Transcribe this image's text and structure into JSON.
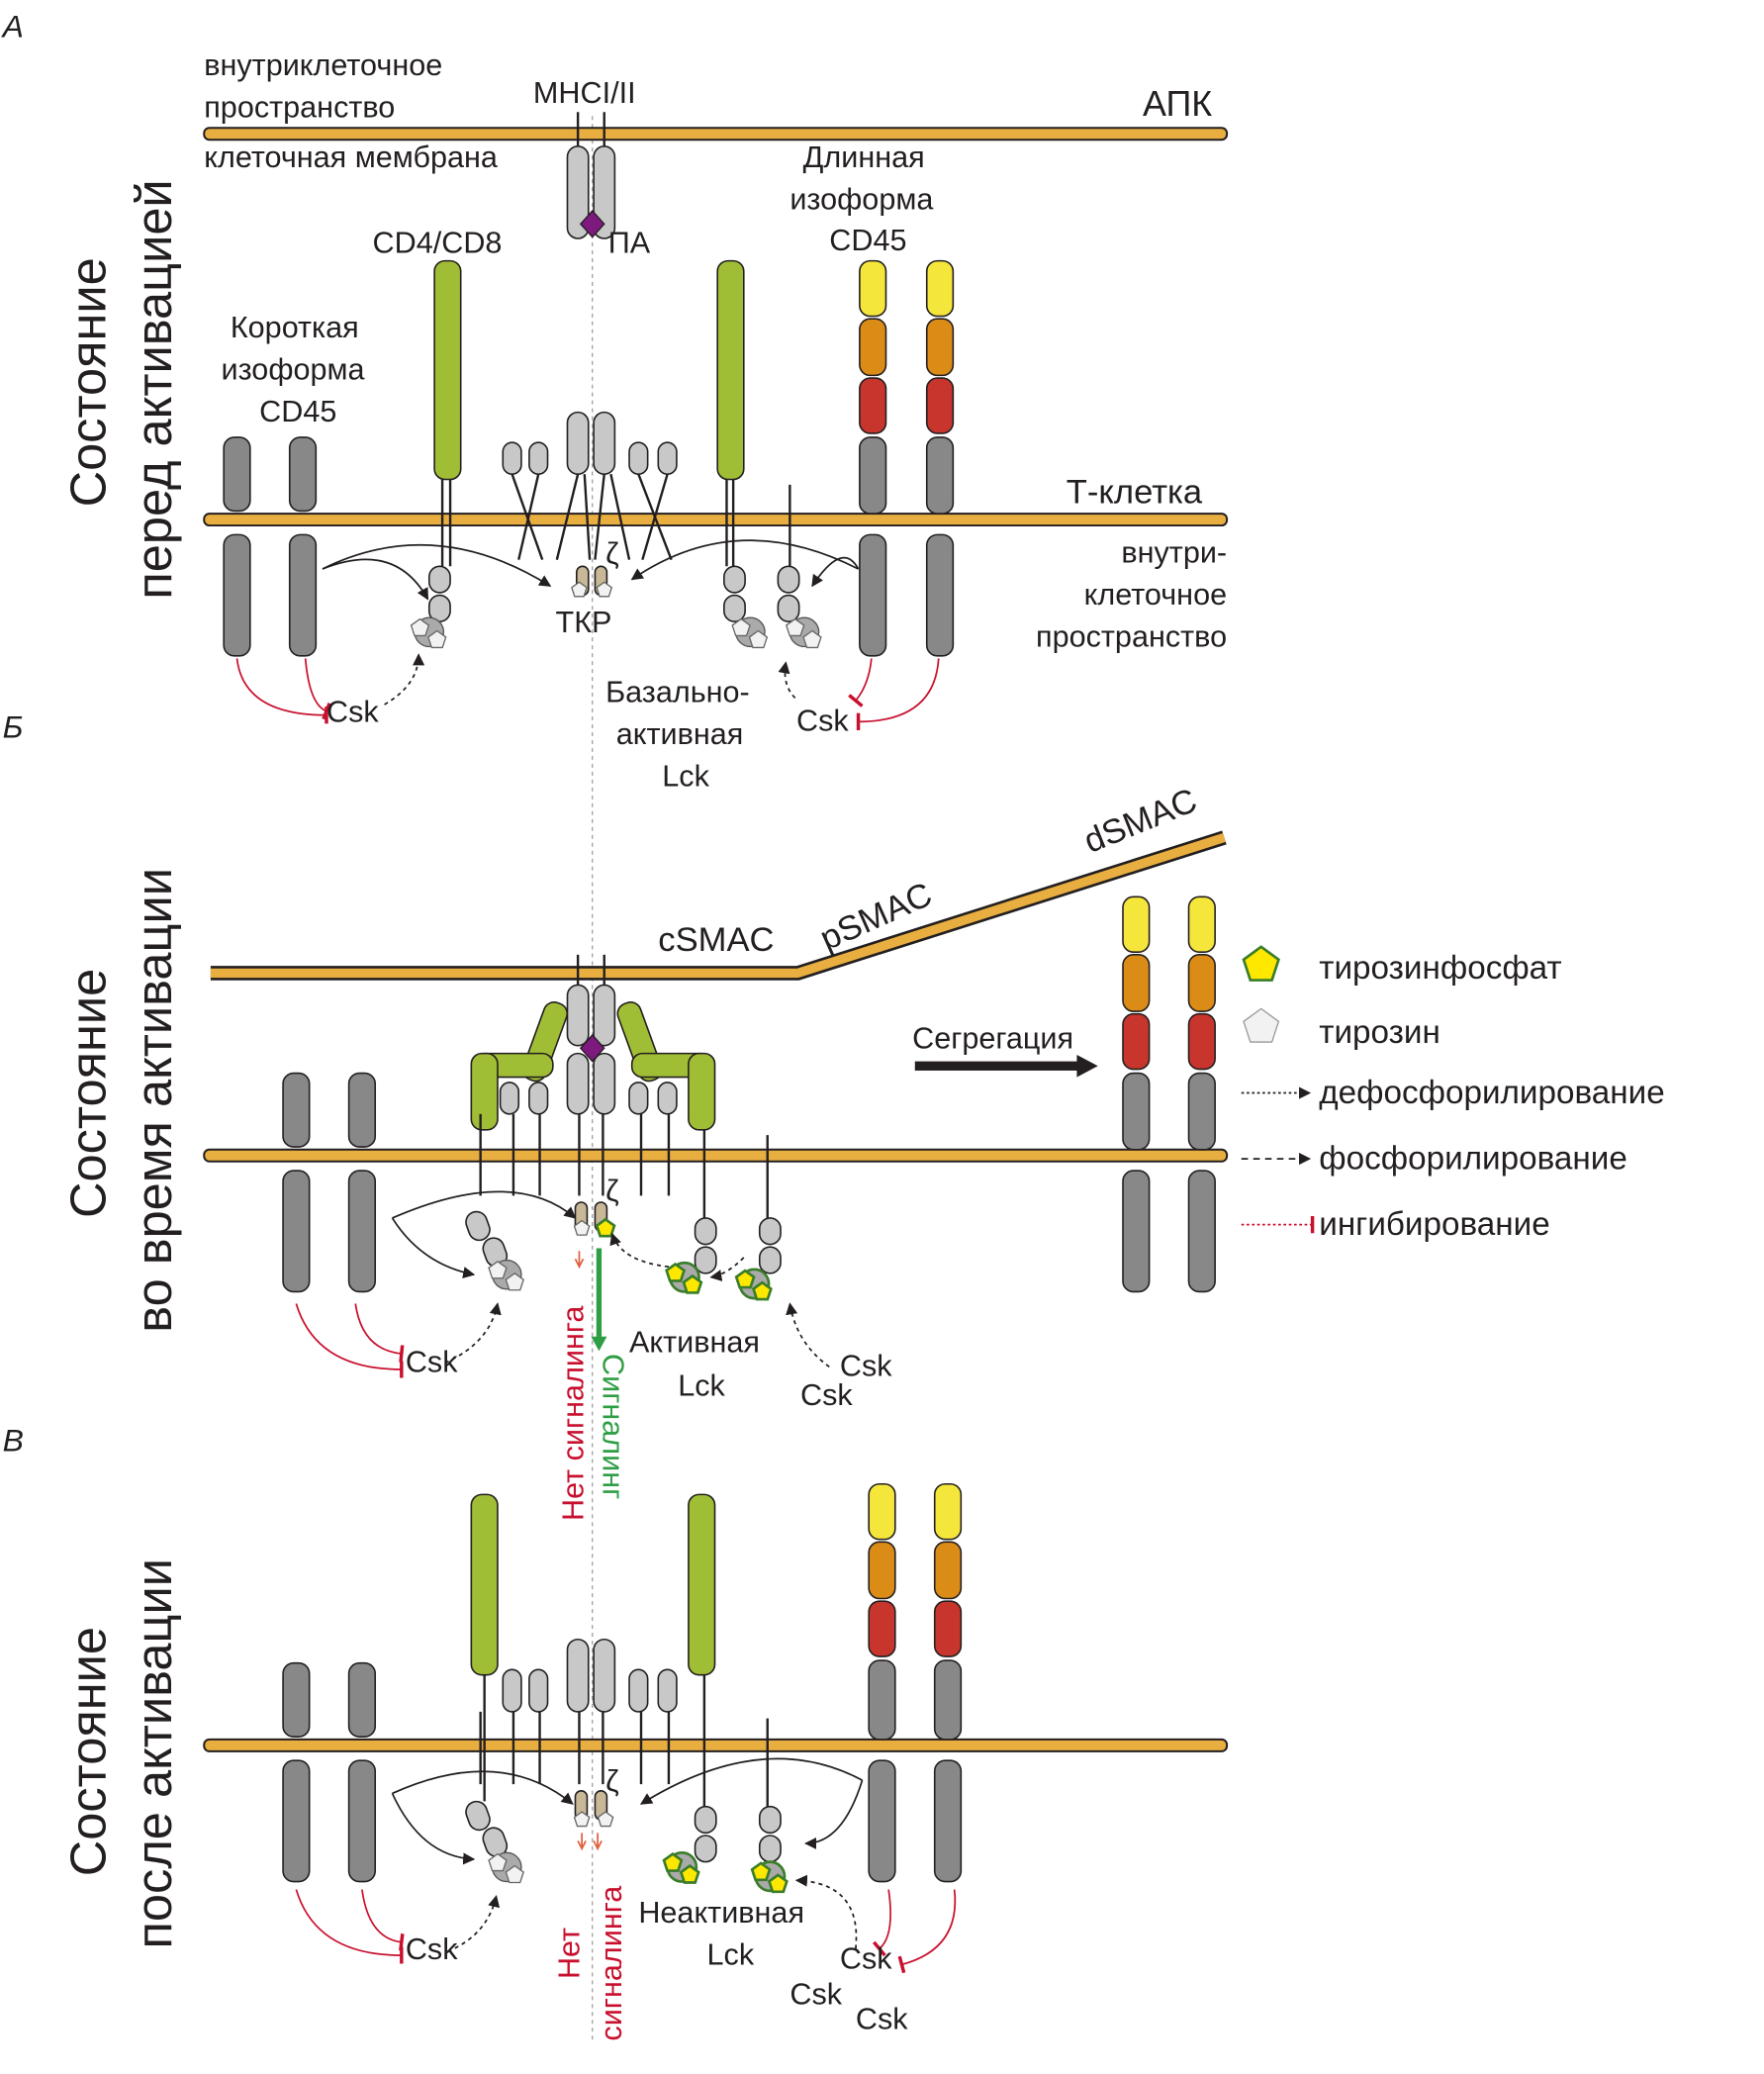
{
  "panels": {
    "a": {
      "letter": "А",
      "side_title_1": "Состояние",
      "side_title_2": "перед активацией",
      "apc_intracellular_1": "внутриклеточное",
      "apc_intracellular_2": "пространство",
      "mhc": "МНСI/II",
      "apc": "АПК",
      "cell_membrane": "клеточная мембрана",
      "antigen": "ПА",
      "cd4cd8": "CD4/CD8",
      "long_cd45_1": "Длинная",
      "long_cd45_2": "изоформа",
      "long_cd45_3": "CD45",
      "short_cd45_1": "Короткая",
      "short_cd45_2": "изоформа",
      "short_cd45_3": "CD45",
      "t_cell": "Т-клетка",
      "t_intracellular_1": "внутри-",
      "t_intracellular_2": "клеточное",
      "t_intracellular_3": "пространство",
      "zeta": "ζ",
      "tcr": "ТКР",
      "csk_left": "Csk",
      "csk_right": "Csk",
      "lck_1": "Базально-",
      "lck_2": "активная",
      "lck_3": "Lck"
    },
    "b": {
      "letter": "Б",
      "side_title_1": "Состояние",
      "side_title_2": "во время активации",
      "csmac": "cSMAC",
      "psmac": "pSMAC",
      "dsmac": "dSMAC",
      "segregation": "Сегрегация",
      "zeta": "ζ",
      "no_signaling": "Нет сигналинга",
      "signaling": "Сигналинг",
      "lck_1": "Активная",
      "lck_2": "Lck",
      "csk_left": "Csk",
      "csk_right_1": "Csk",
      "csk_right_2": "Csk"
    },
    "c": {
      "letter": "В",
      "side_title_1": "Состояние",
      "side_title_2": "после активации",
      "zeta": "ζ",
      "no_signaling_1": "Нет",
      "no_signaling_2": "сигналинга",
      "lck_1": "Неактивная",
      "lck_2": "Lck",
      "csk_left": "Csk",
      "csk_right_1": "Csk",
      "csk_right_2": "Csk",
      "csk_right_3": "Csk"
    }
  },
  "legend": {
    "phosphotyrosine": "тирозинфосфат",
    "tyrosine": "тирозин",
    "dephosphorylation": "дефосфорилирование",
    "phosphorylation": "фосфорилирование",
    "inhibition": "ингибирование"
  },
  "colors": {
    "membrane": "#E8AE40",
    "cd45_yellow": "#F5E63B",
    "cd45_orange": "#DB8C16",
    "cd45_red": "#C8352C",
    "cd45_grey": "#888888",
    "coreceptor_green": "#A0BE35",
    "receptor_grey": "#C8C8C8",
    "zeta_tan": "#C8B898",
    "peptide_purple": "#7D1A7D",
    "inhibition_red": "#C8102E",
    "signaling_green": "#2E9E44"
  }
}
